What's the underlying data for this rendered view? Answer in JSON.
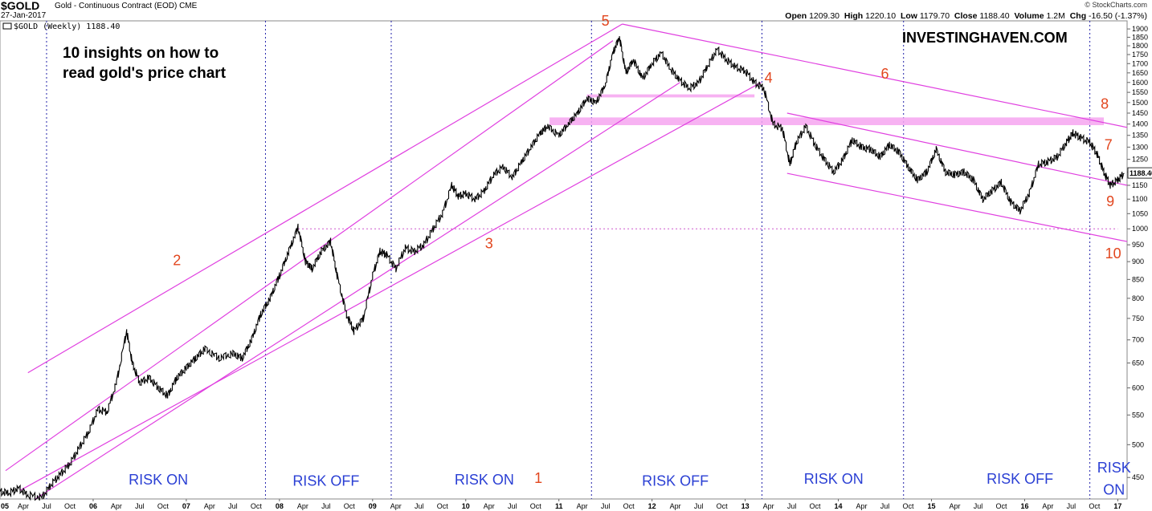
{
  "header": {
    "symbol": "$GOLD",
    "name": "Gold - Continuous Contract (EOD)",
    "exchange": "CME",
    "date": "27-Jan-2017",
    "credit": "© StockCharts.com",
    "open_label": "Open",
    "open": "1209.30",
    "high_label": "High",
    "high": "1220.10",
    "low_label": "Low",
    "low": "1179.70",
    "close_label": "Close",
    "close": "1188.40",
    "volume_label": "Volume",
    "volume": "1.2M",
    "chg_label": "Chg",
    "chg": "-16.50 (-1.37%)"
  },
  "chart_data": {
    "type": "line",
    "title": "10 insights on how to read gold's price chart",
    "legend": "$GOLD (Weekly) 1188.40",
    "watermark": "INVESTINGHAVEN.COM",
    "last_value_label": "1188.40",
    "x_range": [
      2005.0,
      2017.1
    ],
    "y_range": [
      420,
      1950
    ],
    "y_scale": "log",
    "y_ticks": [
      450,
      500,
      550,
      600,
      650,
      700,
      750,
      800,
      850,
      900,
      950,
      1000,
      1050,
      1100,
      1150,
      1200,
      1250,
      1300,
      1350,
      1400,
      1450,
      1500,
      1550,
      1600,
      1650,
      1700,
      1750,
      1800,
      1850,
      1900
    ],
    "year_ticks": [
      {
        "x": 2006,
        "label": "06"
      },
      {
        "x": 2007,
        "label": "07"
      },
      {
        "x": 2008,
        "label": "08"
      },
      {
        "x": 2009,
        "label": "09"
      },
      {
        "x": 2010,
        "label": "10"
      },
      {
        "x": 2011,
        "label": "11"
      },
      {
        "x": 2012,
        "label": "12"
      },
      {
        "x": 2013,
        "label": "13"
      },
      {
        "x": 2014,
        "label": "14"
      },
      {
        "x": 2015,
        "label": "15"
      },
      {
        "x": 2016,
        "label": "16"
      },
      {
        "x": 2017,
        "label": "17"
      }
    ],
    "first_tick_label": "05",
    "month_labels": [
      "Apr",
      "Jul",
      "Oct"
    ],
    "series": [
      {
        "values": [
          [
            2005.0,
            430
          ],
          [
            2005.1,
            428
          ],
          [
            2005.2,
            435
          ],
          [
            2005.3,
            425
          ],
          [
            2005.45,
            422
          ],
          [
            2005.55,
            440
          ],
          [
            2005.65,
            455
          ],
          [
            2005.75,
            470
          ],
          [
            2005.85,
            495
          ],
          [
            2005.95,
            520
          ],
          [
            2006.05,
            560
          ],
          [
            2006.15,
            555
          ],
          [
            2006.25,
            610
          ],
          [
            2006.36,
            720
          ],
          [
            2006.42,
            650
          ],
          [
            2006.5,
            610
          ],
          [
            2006.6,
            620
          ],
          [
            2006.7,
            600
          ],
          [
            2006.8,
            585
          ],
          [
            2006.9,
            620
          ],
          [
            2007.0,
            640
          ],
          [
            2007.1,
            660
          ],
          [
            2007.2,
            680
          ],
          [
            2007.35,
            660
          ],
          [
            2007.5,
            670
          ],
          [
            2007.6,
            660
          ],
          [
            2007.7,
            700
          ],
          [
            2007.8,
            760
          ],
          [
            2007.9,
            800
          ],
          [
            2008.0,
            860
          ],
          [
            2008.1,
            930
          ],
          [
            2008.2,
            1005
          ],
          [
            2008.28,
            900
          ],
          [
            2008.35,
            880
          ],
          [
            2008.45,
            930
          ],
          [
            2008.55,
            960
          ],
          [
            2008.62,
            860
          ],
          [
            2008.72,
            760
          ],
          [
            2008.8,
            720
          ],
          [
            2008.9,
            750
          ],
          [
            2009.0,
            860
          ],
          [
            2009.08,
            930
          ],
          [
            2009.15,
            920
          ],
          [
            2009.25,
            880
          ],
          [
            2009.35,
            940
          ],
          [
            2009.45,
            930
          ],
          [
            2009.55,
            950
          ],
          [
            2009.65,
            1000
          ],
          [
            2009.75,
            1050
          ],
          [
            2009.85,
            1150
          ],
          [
            2009.92,
            1110
          ],
          [
            2010.0,
            1120
          ],
          [
            2010.1,
            1100
          ],
          [
            2010.2,
            1130
          ],
          [
            2010.3,
            1190
          ],
          [
            2010.4,
            1220
          ],
          [
            2010.5,
            1180
          ],
          [
            2010.6,
            1240
          ],
          [
            2010.7,
            1300
          ],
          [
            2010.8,
            1360
          ],
          [
            2010.88,
            1390
          ],
          [
            2011.0,
            1350
          ],
          [
            2011.1,
            1400
          ],
          [
            2011.2,
            1450
          ],
          [
            2011.3,
            1520
          ],
          [
            2011.4,
            1500
          ],
          [
            2011.5,
            1590
          ],
          [
            2011.58,
            1760
          ],
          [
            2011.65,
            1850
          ],
          [
            2011.72,
            1650
          ],
          [
            2011.8,
            1720
          ],
          [
            2011.9,
            1620
          ],
          [
            2012.0,
            1700
          ],
          [
            2012.1,
            1760
          ],
          [
            2012.2,
            1670
          ],
          [
            2012.3,
            1610
          ],
          [
            2012.4,
            1570
          ],
          [
            2012.5,
            1600
          ],
          [
            2012.6,
            1690
          ],
          [
            2012.7,
            1780
          ],
          [
            2012.8,
            1720
          ],
          [
            2012.9,
            1680
          ],
          [
            2013.0,
            1660
          ],
          [
            2013.1,
            1600
          ],
          [
            2013.2,
            1570
          ],
          [
            2013.3,
            1400
          ],
          [
            2013.4,
            1380
          ],
          [
            2013.48,
            1230
          ],
          [
            2013.55,
            1320
          ],
          [
            2013.65,
            1390
          ],
          [
            2013.75,
            1310
          ],
          [
            2013.85,
            1250
          ],
          [
            2013.95,
            1200
          ],
          [
            2014.05,
            1250
          ],
          [
            2014.15,
            1330
          ],
          [
            2014.25,
            1300
          ],
          [
            2014.35,
            1290
          ],
          [
            2014.45,
            1260
          ],
          [
            2014.55,
            1310
          ],
          [
            2014.65,
            1280
          ],
          [
            2014.75,
            1220
          ],
          [
            2014.85,
            1170
          ],
          [
            2014.95,
            1200
          ],
          [
            2015.05,
            1290
          ],
          [
            2015.15,
            1200
          ],
          [
            2015.25,
            1190
          ],
          [
            2015.35,
            1200
          ],
          [
            2015.45,
            1170
          ],
          [
            2015.55,
            1100
          ],
          [
            2015.65,
            1130
          ],
          [
            2015.75,
            1160
          ],
          [
            2015.85,
            1090
          ],
          [
            2015.95,
            1060
          ],
          [
            2016.05,
            1120
          ],
          [
            2016.15,
            1230
          ],
          [
            2016.25,
            1240
          ],
          [
            2016.35,
            1260
          ],
          [
            2016.45,
            1320
          ],
          [
            2016.52,
            1360
          ],
          [
            2016.6,
            1340
          ],
          [
            2016.7,
            1320
          ],
          [
            2016.78,
            1270
          ],
          [
            2016.85,
            1200
          ],
          [
            2016.92,
            1150
          ],
          [
            2017.0,
            1170
          ],
          [
            2017.07,
            1195
          ]
        ]
      }
    ],
    "channel_lines": [
      [
        [
          2005.06,
          460
        ],
        [
          2011.58,
          1830
        ]
      ],
      [
        [
          2005.22,
          432
        ],
        [
          2013.17,
          1600
        ]
      ],
      [
        [
          2005.38,
          420
        ],
        [
          2012.3,
          1600
        ]
      ],
      [
        [
          2005.3,
          630
        ],
        [
          2011.68,
          1930
        ]
      ],
      [
        [
          2011.68,
          1930
        ],
        [
          2017.1,
          1385
        ]
      ],
      [
        [
          2013.45,
          1450
        ],
        [
          2017.1,
          1150
        ]
      ],
      [
        [
          2013.45,
          1195
        ],
        [
          2017.1,
          960
        ]
      ]
    ],
    "resistance_bands": [
      {
        "x0": 2010.9,
        "x1": 2016.85,
        "lo": 1395,
        "hi": 1430
      },
      {
        "x0": 2011.3,
        "x1": 2013.1,
        "lo": 1525,
        "hi": 1540
      }
    ],
    "horizontal_line": {
      "y": 1000,
      "x0": 2008.2,
      "x1": 2017.0
    },
    "regime_lines": [
      2005.5,
      2007.85,
      2009.2,
      2011.35,
      2013.18,
      2014.7,
      2016.7
    ],
    "regime_labels": [
      {
        "text": "RISK ON",
        "x": 2006.7,
        "y": 440
      },
      {
        "text": "RISK OFF",
        "x": 2008.5,
        "y": 438
      },
      {
        "text": "RISK ON",
        "x": 2010.2,
        "y": 440
      },
      {
        "text": "RISK OFF",
        "x": 2012.25,
        "y": 438
      },
      {
        "text": "RISK ON",
        "x": 2013.95,
        "y": 441
      },
      {
        "text": "RISK OFF",
        "x": 2015.95,
        "y": 441
      },
      {
        "text": "RISK",
        "x": 2016.96,
        "y": 457
      },
      {
        "text": "ON",
        "x": 2016.96,
        "y": 426
      }
    ],
    "annotations": [
      {
        "text": "1",
        "x": 2010.78,
        "y": 442
      },
      {
        "text": "2",
        "x": 2006.9,
        "y": 890
      },
      {
        "text": "3",
        "x": 2010.25,
        "y": 940
      },
      {
        "text": "4",
        "x": 2013.25,
        "y": 1600
      },
      {
        "text": "5",
        "x": 2011.5,
        "y": 1920
      },
      {
        "text": "6",
        "x": 2014.5,
        "y": 1620
      },
      {
        "text": "7",
        "x": 2016.9,
        "y": 1290
      },
      {
        "text": "8",
        "x": 2016.86,
        "y": 1470
      },
      {
        "text": "9",
        "x": 2016.92,
        "y": 1075
      },
      {
        "text": "10",
        "x": 2016.95,
        "y": 910
      }
    ],
    "colors": {
      "price": "#000000",
      "channel": "#e040e0",
      "band": "#f6a4f0",
      "regime_line": "#2222aa",
      "regime_text": "#2a3fd4",
      "annotation": "#e2461e",
      "grid": "#cc55cc"
    }
  }
}
